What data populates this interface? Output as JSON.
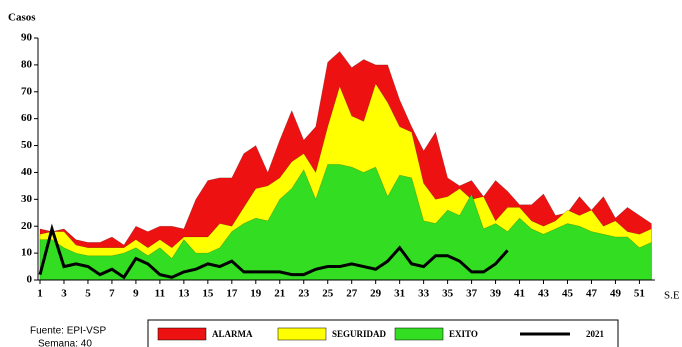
{
  "chart_data": {
    "type": "area",
    "y_label": "Casos",
    "x_label": "S.E",
    "source": "Fuente: EPI-VSP",
    "week_note": "Semana: 40",
    "x": [
      1,
      2,
      3,
      4,
      5,
      6,
      7,
      8,
      9,
      10,
      11,
      12,
      13,
      14,
      15,
      16,
      17,
      18,
      19,
      20,
      21,
      22,
      23,
      24,
      25,
      26,
      27,
      28,
      29,
      30,
      31,
      32,
      33,
      34,
      35,
      36,
      37,
      38,
      39,
      40,
      41,
      42,
      43,
      44,
      45,
      46,
      47,
      48,
      49,
      50,
      51,
      52
    ],
    "xlim": [
      1,
      52.3
    ],
    "xticks": [
      1,
      3,
      5,
      7,
      9,
      11,
      13,
      15,
      17,
      19,
      21,
      23,
      25,
      27,
      29,
      31,
      33,
      35,
      37,
      39,
      41,
      43,
      45,
      47,
      49,
      51
    ],
    "ylim": [
      0,
      90
    ],
    "yticks": [
      0,
      10,
      20,
      30,
      40,
      50,
      60,
      70,
      80,
      90
    ],
    "series": [
      {
        "name": "ALARMA",
        "color": "#ee1111",
        "values": [
          19,
          18,
          19,
          15,
          14,
          14,
          16,
          13,
          20,
          18,
          20,
          20,
          19,
          30,
          37,
          38,
          38,
          47,
          50,
          40,
          52,
          63,
          52,
          57,
          81,
          85,
          79,
          82,
          80,
          80,
          67,
          57,
          48,
          55,
          38,
          35,
          37,
          31,
          37,
          33,
          28,
          28,
          32,
          24,
          25,
          31,
          26,
          31,
          23,
          27,
          24,
          21
        ]
      },
      {
        "name": "SEGURIDAD",
        "color": "#ffff00",
        "values": [
          17,
          18,
          18,
          13,
          12,
          12,
          12,
          12,
          15,
          12,
          15,
          12,
          16,
          16,
          16,
          21,
          20,
          27,
          34,
          35,
          38,
          44,
          47,
          40,
          57,
          72,
          61,
          59,
          73,
          66,
          57,
          55,
          36,
          30,
          31,
          34,
          30,
          31,
          22,
          27,
          27,
          22,
          20,
          22,
          26,
          24,
          26,
          20,
          22,
          18,
          17,
          19
        ]
      },
      {
        "name": "EXITO",
        "color": "#33dd22",
        "values": [
          15,
          15,
          12,
          10,
          9,
          9,
          9,
          10,
          12,
          9,
          12,
          8,
          15,
          10,
          10,
          12,
          18,
          21,
          23,
          22,
          30,
          34,
          41,
          30,
          43,
          43,
          42,
          40,
          42,
          31,
          39,
          38,
          22,
          21,
          26,
          24,
          32,
          19,
          21,
          18,
          23,
          19,
          17,
          19,
          21,
          20,
          18,
          17,
          16,
          16,
          12,
          14
        ]
      },
      {
        "name": "2021",
        "type": "line",
        "color": "#000000",
        "values": [
          2,
          19,
          5,
          6,
          5,
          2,
          4,
          1,
          8,
          6,
          2,
          1,
          3,
          4,
          6,
          5,
          7,
          3,
          3,
          3,
          3,
          2,
          2,
          4,
          5,
          5,
          6,
          5,
          4,
          7,
          12,
          6,
          5,
          9,
          9,
          7,
          3,
          3,
          6,
          11,
          null,
          null,
          null,
          null,
          null,
          null,
          null,
          null,
          null,
          null,
          null,
          null
        ]
      }
    ]
  }
}
